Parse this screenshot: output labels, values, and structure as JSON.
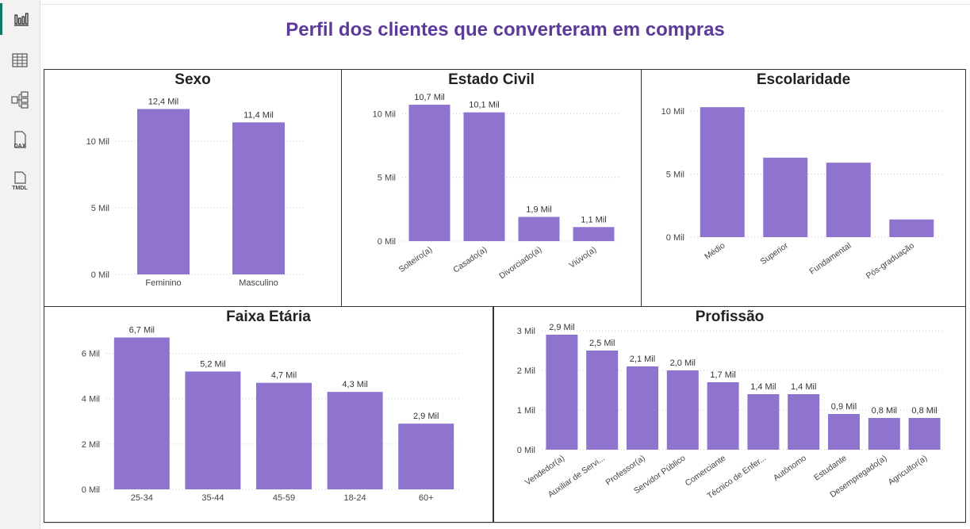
{
  "page": {
    "title": "Perfil dos clientes que converteram em compras"
  },
  "rail": {
    "items": [
      {
        "name": "report-view-icon",
        "icon": "bar-chart-icon",
        "active": true
      },
      {
        "name": "table-view-icon",
        "icon": "table-grid-icon",
        "active": false
      },
      {
        "name": "model-view-icon",
        "icon": "model-diagram-icon",
        "active": false
      },
      {
        "name": "dax-query-view-icon",
        "icon": "dax-file-icon",
        "label": "DAX",
        "active": false
      },
      {
        "name": "tmdl-view-icon",
        "icon": "tmdl-file-icon",
        "label": "TMDL",
        "active": false
      }
    ]
  },
  "colors": {
    "bar": "#8e74cf",
    "title": "#5b3a9a",
    "accent": "#117865"
  },
  "chart_data": [
    {
      "id": "sexo",
      "type": "bar",
      "title": "Sexo",
      "categories": [
        "Feminino",
        "Masculino"
      ],
      "values": [
        12.4,
        11.4
      ],
      "data_labels": [
        "12,4 Mil",
        "11,4 Mil"
      ],
      "ylim": [
        0,
        13.2
      ],
      "yticks": [
        0,
        5,
        10
      ],
      "ytick_labels": [
        "0 Mil",
        "5 Mil",
        "10 Mil"
      ],
      "grid": true
    },
    {
      "id": "estado-civil",
      "type": "bar",
      "title": "Estado Civil",
      "categories": [
        "Solteiro(a)",
        "Casado(a)",
        "Divorciado(a)",
        "Viúvo(a)"
      ],
      "values": [
        10.7,
        10.1,
        1.9,
        1.1
      ],
      "data_labels": [
        "10,7 Mil",
        "10,1 Mil",
        "1,9 Mil",
        "1,1 Mil"
      ],
      "ylim": [
        0,
        11.2
      ],
      "yticks": [
        0,
        5,
        10
      ],
      "ytick_labels": [
        "0 Mil",
        "5 Mil",
        "10 Mil"
      ],
      "grid": true
    },
    {
      "id": "escolaridade",
      "type": "bar",
      "title": "Escolaridade",
      "categories": [
        "Médio",
        "Superior",
        "Fundamental",
        "Pós-graduação"
      ],
      "values": [
        10.3,
        6.3,
        5.9,
        1.4
      ],
      "data_labels": [],
      "ylim": [
        0,
        11
      ],
      "yticks": [
        0,
        5,
        10
      ],
      "ytick_labels": [
        "0 Mil",
        "5 Mil",
        "10 Mil"
      ],
      "grid": true
    },
    {
      "id": "faixa-etaria",
      "type": "bar",
      "title": "Faixa Etária",
      "categories": [
        "25-34",
        "35-44",
        "45-59",
        "18-24",
        "60+"
      ],
      "values": [
        6.7,
        5.2,
        4.7,
        4.3,
        2.9
      ],
      "data_labels": [
        "6,7 Mil",
        "5,2 Mil",
        "4,7 Mil",
        "4,3 Mil",
        "2,9 Mil"
      ],
      "ylim": [
        0,
        7.0
      ],
      "yticks": [
        0,
        2,
        4,
        6
      ],
      "ytick_labels": [
        "0 Mil",
        "2 Mil",
        "4 Mil",
        "6 Mil"
      ],
      "grid": true
    },
    {
      "id": "profissao",
      "type": "bar",
      "title": "Profissão",
      "categories": [
        "Vendedor(a)",
        "Auxiliar de Servi...",
        "Professor(a)",
        "Servidor Público",
        "Comerciante",
        "Técnico de Enfer...",
        "Autônomo",
        "Estudante",
        "Desempregado(a)",
        "Agricultor(a)"
      ],
      "values": [
        2.9,
        2.5,
        2.1,
        2.0,
        1.7,
        1.4,
        1.4,
        0.9,
        0.8,
        0.8
      ],
      "data_labels": [
        "2,9 Mil",
        "2,5 Mil",
        "2,1 Mil",
        "2,0 Mil",
        "1,7 Mil",
        "1,4 Mil",
        "1,4 Mil",
        "0,9 Mil",
        "0,8 Mil",
        "0,8 Mil"
      ],
      "ylim": [
        0,
        3.0
      ],
      "yticks": [
        0,
        1,
        2,
        3
      ],
      "ytick_labels": [
        "0 Mil",
        "1 Mil",
        "2 Mil",
        "3 Mil"
      ],
      "grid": true
    }
  ]
}
